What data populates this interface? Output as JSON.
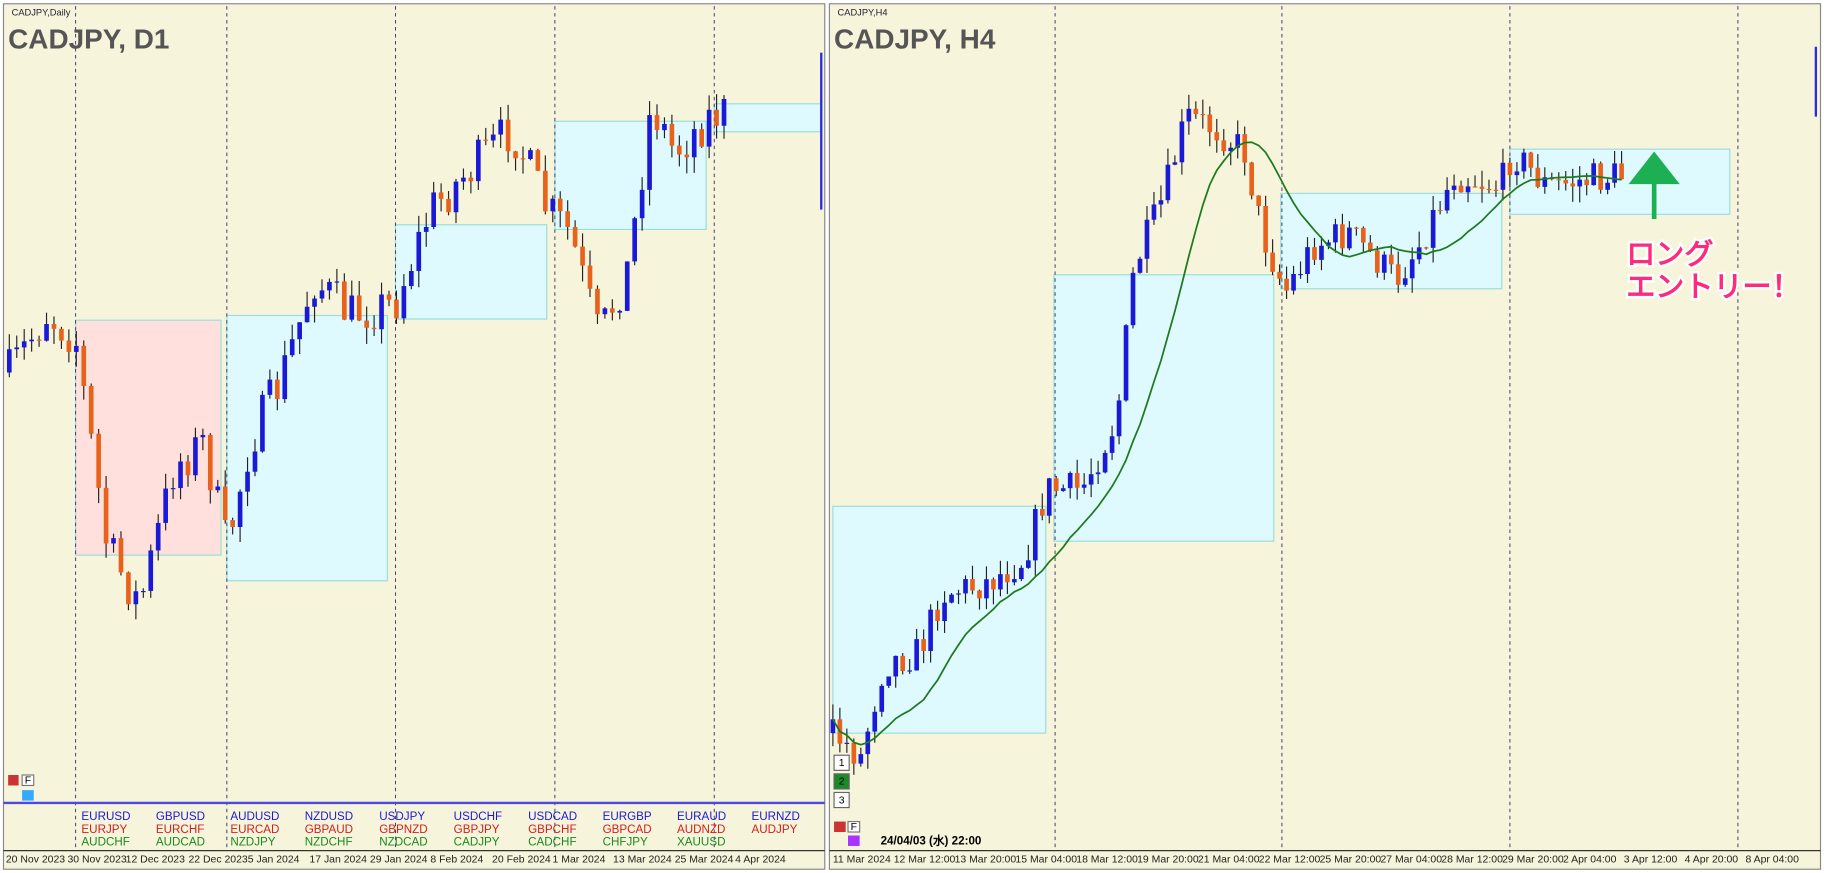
{
  "left_panel": {
    "window_label": "CADJPY,Daily",
    "title": "CADJPY, D1",
    "toolbar_button": "F",
    "x_axis": [
      "20 Nov 2023",
      "30 Nov 2023",
      "12 Dec 2023",
      "22 Dec 2023",
      "5 Jan 2024",
      "17 Jan 2024",
      "29 Jan 2024",
      "8 Feb 2024",
      "20 Feb 2024",
      "1 Mar 2024",
      "13 Mar 2024",
      "25 Mar 2024",
      "4 Apr 2024"
    ],
    "symbols": [
      [
        "EURUSD",
        "EURJPY",
        "AUDCHF"
      ],
      [
        "GBPUSD",
        "EURCHF",
        "AUDCAD"
      ],
      [
        "AUDUSD",
        "EURCAD",
        "NZDJPY"
      ],
      [
        "NZDUSD",
        "GBPAUD",
        "NZDCHF"
      ],
      [
        "USDJPY",
        "GBPNZD",
        "NZDCAD"
      ],
      [
        "USDCHF",
        "GBPJPY",
        "CADJPY"
      ],
      [
        "USDCAD",
        "GBPCHF",
        "CADCHF"
      ],
      [
        "EURGBP",
        "GBPCAD",
        "CHFJPY"
      ],
      [
        "EURAUD",
        "AUDNZD",
        "XAUUSD"
      ],
      [
        "EURNZD",
        "AUDJPY"
      ]
    ]
  },
  "right_panel": {
    "window_label": "CADJPY,H4",
    "title": "CADJPY, H4",
    "toolbar_button": "F",
    "buttons": [
      "1",
      "2",
      "3"
    ],
    "cursor_time": "24/04/03 (水) 22:00",
    "x_axis": [
      "11 Mar 2024",
      "12 Mar 12:00",
      "13 Mar 20:00",
      "15 Mar 04:00",
      "18 Mar 12:00",
      "19 Mar 20:00",
      "21 Mar 04:00",
      "22 Mar 12:00",
      "25 Mar 20:00",
      "27 Mar 04:00",
      "28 Mar 12:00",
      "29 Mar 20:00",
      "2 Apr 04:00",
      "3 Apr 12:00",
      "4 Apr 20:00",
      "8 Apr 04:00"
    ],
    "annotation": [
      "ロング",
      "エントリー！"
    ]
  }
}
